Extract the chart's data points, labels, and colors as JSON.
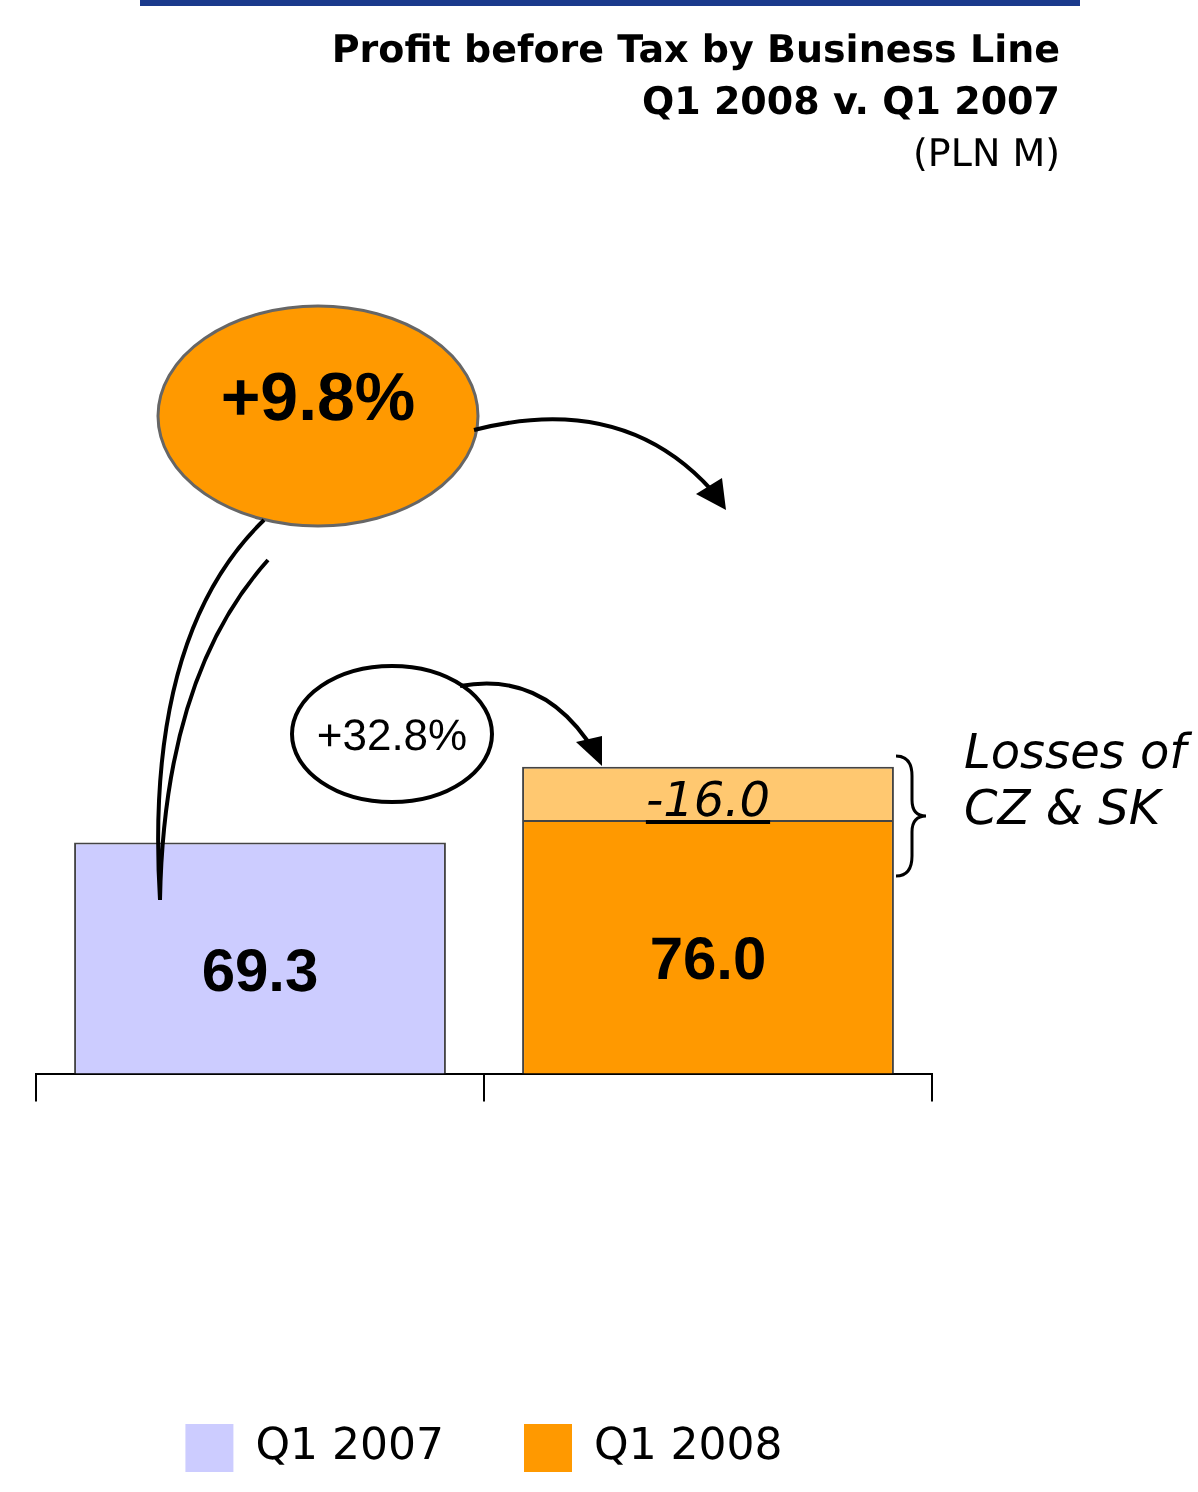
{
  "chart_data": {
    "type": "bar",
    "title": "Profit before Tax by Business Line\nQ1 2008 v. Q1 2007",
    "subtitle": "(PLN M)",
    "categories": [
      null,
      null
    ],
    "stacked": true,
    "legend": "bottom",
    "grid": false,
    "series": [
      {
        "name": "Q1 2007",
        "color": "#ccccff",
        "values": [
          69.3,
          null
        ],
        "value_labels": [
          "69.3",
          null
        ]
      },
      {
        "name": "Q1 2008",
        "color": "#ff9900",
        "values": [
          null,
          76.0
        ],
        "value_labels": [
          null,
          "76.0"
        ]
      },
      {
        "color": "#ffc870",
        "values": [
          null,
          16
        ]
      }
    ],
    "annotations": [
      "+9.8%",
      "+32.8%",
      "Losses of\nCZ & SK",
      "-16.0"
    ]
  }
}
